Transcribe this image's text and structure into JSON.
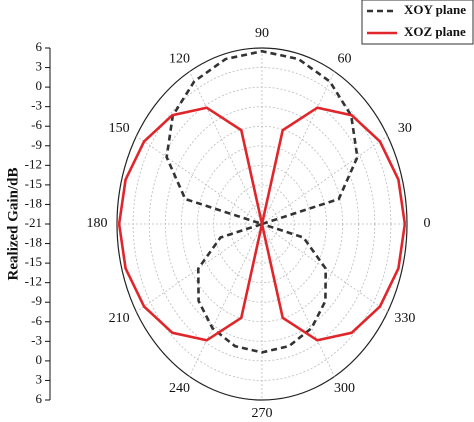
{
  "chart_data": {
    "type": "polar",
    "ylabel": "Realized Gain/dB",
    "rlim": [
      -21,
      6
    ],
    "rticks": [
      -21,
      -18,
      -15,
      -12,
      -9,
      -6,
      -3,
      0,
      3,
      6
    ],
    "angle_ticks": [
      0,
      30,
      60,
      90,
      120,
      150,
      180,
      210,
      240,
      270,
      300,
      330
    ],
    "grid": true,
    "legend": "upper right",
    "x": [
      0,
      15,
      30,
      45,
      60,
      75,
      90,
      105,
      120,
      135,
      150,
      165,
      180,
      195,
      210,
      225,
      240,
      255,
      270,
      285,
      300,
      315,
      330,
      345,
      360
    ],
    "series": [
      {
        "name": "XOY plane",
        "color": "#333333",
        "dashed": true,
        "values": [
          -21,
          -6.2,
          -0.5,
          2.5,
          4.25,
          5.2,
          5.5,
          5.2,
          4.25,
          2.5,
          -0.5,
          -6.2,
          -21,
          -13,
          -7.3,
          -4.3,
          -2.55,
          -1.6,
          -1.3,
          -1.6,
          -2.55,
          -4.3,
          -7.3,
          -13,
          -21
        ]
      },
      {
        "name": "XOZ plane",
        "color": "#e0262b",
        "dashed": false,
        "values": [
          5.6,
          5.3,
          4.35,
          2.6,
          -0.4,
          -6.1,
          -21,
          -6.1,
          -0.4,
          2.6,
          4.35,
          5.3,
          5.6,
          5.3,
          4.35,
          2.6,
          -0.4,
          -6.1,
          -21,
          -6.1,
          -0.4,
          2.6,
          4.35,
          5.3,
          5.6
        ]
      }
    ]
  }
}
